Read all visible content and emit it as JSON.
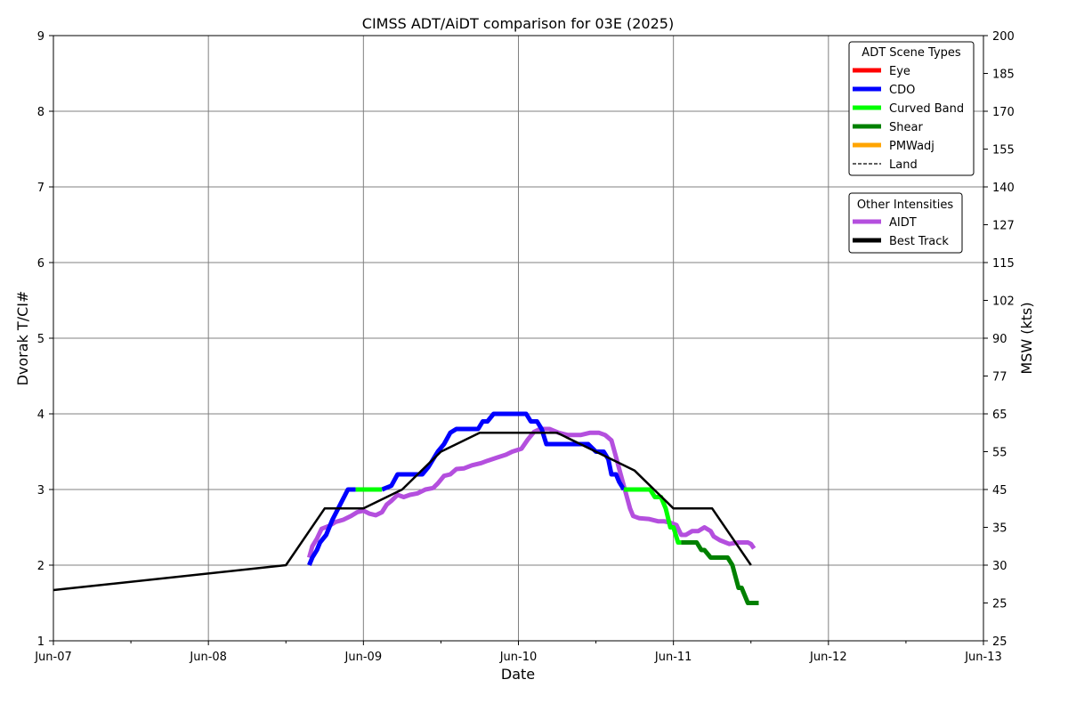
{
  "chart_data": {
    "type": "line",
    "title": "CIMSS ADT/AiDT comparison for 03E (2025)",
    "xlabel": "Date",
    "ylabel": "Dvorak T/CI#",
    "y2label": "MSW (kts)",
    "x_ticks": [
      "Jun-07",
      "Jun-08",
      "Jun-09",
      "Jun-10",
      "Jun-11",
      "Jun-12",
      "Jun-13"
    ],
    "xlim": [
      0,
      6
    ],
    "ylim": [
      1,
      9
    ],
    "y_ticks": [
      1,
      2,
      3,
      4,
      5,
      6,
      7,
      8,
      9
    ],
    "y2_ticks": [
      "25",
      "25",
      "30",
      "35",
      "45",
      "55",
      "65",
      "77",
      "90",
      "102",
      "115",
      "127",
      "140",
      "155",
      "170",
      "185",
      "200"
    ],
    "grid": true,
    "legend_scene": {
      "title": "ADT Scene Types",
      "position": "top-right",
      "entries": [
        {
          "label": "Eye",
          "color": "#ff0000",
          "style": "solid"
        },
        {
          "label": "CDO",
          "color": "#0000ff",
          "style": "solid"
        },
        {
          "label": "Curved Band",
          "color": "#00ff00",
          "style": "solid"
        },
        {
          "label": "Shear",
          "color": "#008000",
          "style": "solid"
        },
        {
          "label": "PMWadj",
          "color": "#ffa500",
          "style": "solid"
        },
        {
          "label": "Land",
          "color": "#000000",
          "style": "dashed"
        }
      ]
    },
    "legend_other": {
      "title": "Other Intensities",
      "position": "right",
      "entries": [
        {
          "label": "AIDT",
          "color": "#b44fde",
          "style": "solid"
        },
        {
          "label": "Best Track",
          "color": "#000000",
          "style": "solid"
        }
      ]
    },
    "series": [
      {
        "name": "Best Track",
        "color": "#000000",
        "points": [
          [
            0.0,
            1.67
          ],
          [
            1.5,
            2.0
          ],
          [
            1.75,
            2.75
          ],
          [
            2.0,
            2.75
          ],
          [
            2.25,
            3.0
          ],
          [
            2.5,
            3.5
          ],
          [
            2.75,
            3.75
          ],
          [
            3.0,
            3.75
          ],
          [
            3.25,
            3.75
          ],
          [
            3.5,
            3.5
          ],
          [
            3.75,
            3.25
          ],
          [
            4.0,
            2.75
          ],
          [
            4.25,
            2.75
          ],
          [
            4.5,
            2.0
          ]
        ]
      },
      {
        "name": "AIDT",
        "color": "#b44fde",
        "points": [
          [
            1.65,
            2.1
          ],
          [
            1.67,
            2.25
          ],
          [
            1.7,
            2.35
          ],
          [
            1.73,
            2.48
          ],
          [
            1.78,
            2.52
          ],
          [
            1.82,
            2.57
          ],
          [
            1.87,
            2.6
          ],
          [
            1.92,
            2.65
          ],
          [
            1.96,
            2.7
          ],
          [
            2.0,
            2.72
          ],
          [
            2.04,
            2.68
          ],
          [
            2.08,
            2.66
          ],
          [
            2.12,
            2.7
          ],
          [
            2.15,
            2.8
          ],
          [
            2.18,
            2.85
          ],
          [
            2.22,
            2.93
          ],
          [
            2.26,
            2.9
          ],
          [
            2.3,
            2.93
          ],
          [
            2.35,
            2.95
          ],
          [
            2.4,
            3.0
          ],
          [
            2.45,
            3.02
          ],
          [
            2.48,
            3.08
          ],
          [
            2.52,
            3.18
          ],
          [
            2.56,
            3.2
          ],
          [
            2.6,
            3.27
          ],
          [
            2.65,
            3.28
          ],
          [
            2.7,
            3.32
          ],
          [
            2.76,
            3.35
          ],
          [
            2.8,
            3.38
          ],
          [
            2.86,
            3.42
          ],
          [
            2.92,
            3.46
          ],
          [
            2.96,
            3.5
          ],
          [
            3.02,
            3.54
          ],
          [
            3.06,
            3.66
          ],
          [
            3.1,
            3.76
          ],
          [
            3.14,
            3.8
          ],
          [
            3.2,
            3.8
          ],
          [
            3.26,
            3.75
          ],
          [
            3.32,
            3.72
          ],
          [
            3.4,
            3.72
          ],
          [
            3.46,
            3.75
          ],
          [
            3.52,
            3.75
          ],
          [
            3.56,
            3.72
          ],
          [
            3.6,
            3.65
          ],
          [
            3.62,
            3.5
          ],
          [
            3.64,
            3.35
          ],
          [
            3.66,
            3.2
          ],
          [
            3.68,
            3.05
          ],
          [
            3.7,
            2.9
          ],
          [
            3.72,
            2.75
          ],
          [
            3.74,
            2.65
          ],
          [
            3.78,
            2.62
          ],
          [
            3.84,
            2.61
          ],
          [
            3.9,
            2.58
          ],
          [
            3.94,
            2.58
          ],
          [
            3.98,
            2.56
          ],
          [
            4.02,
            2.53
          ],
          [
            4.05,
            2.4
          ],
          [
            4.08,
            2.4
          ],
          [
            4.12,
            2.45
          ],
          [
            4.16,
            2.45
          ],
          [
            4.2,
            2.5
          ],
          [
            4.24,
            2.45
          ],
          [
            4.26,
            2.38
          ],
          [
            4.3,
            2.33
          ],
          [
            4.36,
            2.28
          ],
          [
            4.42,
            2.3
          ],
          [
            4.48,
            2.3
          ],
          [
            4.5,
            2.28
          ],
          [
            4.52,
            2.22
          ]
        ]
      },
      {
        "name": "CDO",
        "color": "#0000ff",
        "segments": [
          [
            [
              1.65,
              2.0
            ],
            [
              1.67,
              2.1
            ],
            [
              1.7,
              2.2
            ],
            [
              1.72,
              2.3
            ],
            [
              1.76,
              2.4
            ],
            [
              1.8,
              2.6
            ],
            [
              1.85,
              2.8
            ],
            [
              1.9,
              3.0
            ],
            [
              1.95,
              3.0
            ]
          ],
          [
            [
              2.12,
              3.0
            ],
            [
              2.18,
              3.05
            ],
            [
              2.22,
              3.2
            ],
            [
              2.3,
              3.2
            ],
            [
              2.38,
              3.2
            ],
            [
              2.42,
              3.3
            ],
            [
              2.45,
              3.4
            ],
            [
              2.48,
              3.5
            ],
            [
              2.52,
              3.6
            ],
            [
              2.56,
              3.75
            ],
            [
              2.6,
              3.8
            ],
            [
              2.7,
              3.8
            ],
            [
              2.74,
              3.8
            ],
            [
              2.77,
              3.9
            ],
            [
              2.8,
              3.9
            ],
            [
              2.84,
              4.0
            ],
            [
              2.9,
              4.0
            ],
            [
              3.0,
              4.0
            ],
            [
              3.05,
              4.0
            ],
            [
              3.08,
              3.9
            ],
            [
              3.12,
              3.9
            ],
            [
              3.15,
              3.8
            ],
            [
              3.18,
              3.6
            ],
            [
              3.3,
              3.6
            ],
            [
              3.4,
              3.6
            ],
            [
              3.45,
              3.6
            ],
            [
              3.5,
              3.5
            ],
            [
              3.55,
              3.5
            ],
            [
              3.58,
              3.4
            ],
            [
              3.6,
              3.2
            ],
            [
              3.63,
              3.2
            ],
            [
              3.65,
              3.1
            ],
            [
              3.68,
              3.0
            ]
          ]
        ]
      },
      {
        "name": "Curved Band",
        "color": "#00ff00",
        "segments": [
          [
            [
              1.95,
              3.0
            ],
            [
              2.0,
              3.0
            ],
            [
              2.05,
              3.0
            ],
            [
              2.12,
              3.0
            ]
          ],
          [
            [
              3.68,
              3.0
            ],
            [
              3.75,
              3.0
            ],
            [
              3.8,
              3.0
            ],
            [
              3.85,
              3.0
            ],
            [
              3.88,
              2.9
            ],
            [
              3.92,
              2.9
            ],
            [
              3.95,
              2.75
            ],
            [
              3.98,
              2.5
            ],
            [
              4.0,
              2.5
            ],
            [
              4.03,
              2.3
            ],
            [
              4.05,
              2.3
            ]
          ]
        ]
      },
      {
        "name": "Shear",
        "color": "#008000",
        "segments": [
          [
            [
              4.05,
              2.3
            ],
            [
              4.12,
              2.3
            ],
            [
              4.15,
              2.3
            ],
            [
              4.18,
              2.2
            ],
            [
              4.2,
              2.2
            ],
            [
              4.24,
              2.1
            ],
            [
              4.28,
              2.1
            ],
            [
              4.35,
              2.1
            ],
            [
              4.38,
              2.0
            ],
            [
              4.42,
              1.7
            ],
            [
              4.44,
              1.7
            ],
            [
              4.48,
              1.5
            ],
            [
              4.52,
              1.5
            ],
            [
              4.55,
              1.5
            ]
          ]
        ]
      }
    ]
  }
}
